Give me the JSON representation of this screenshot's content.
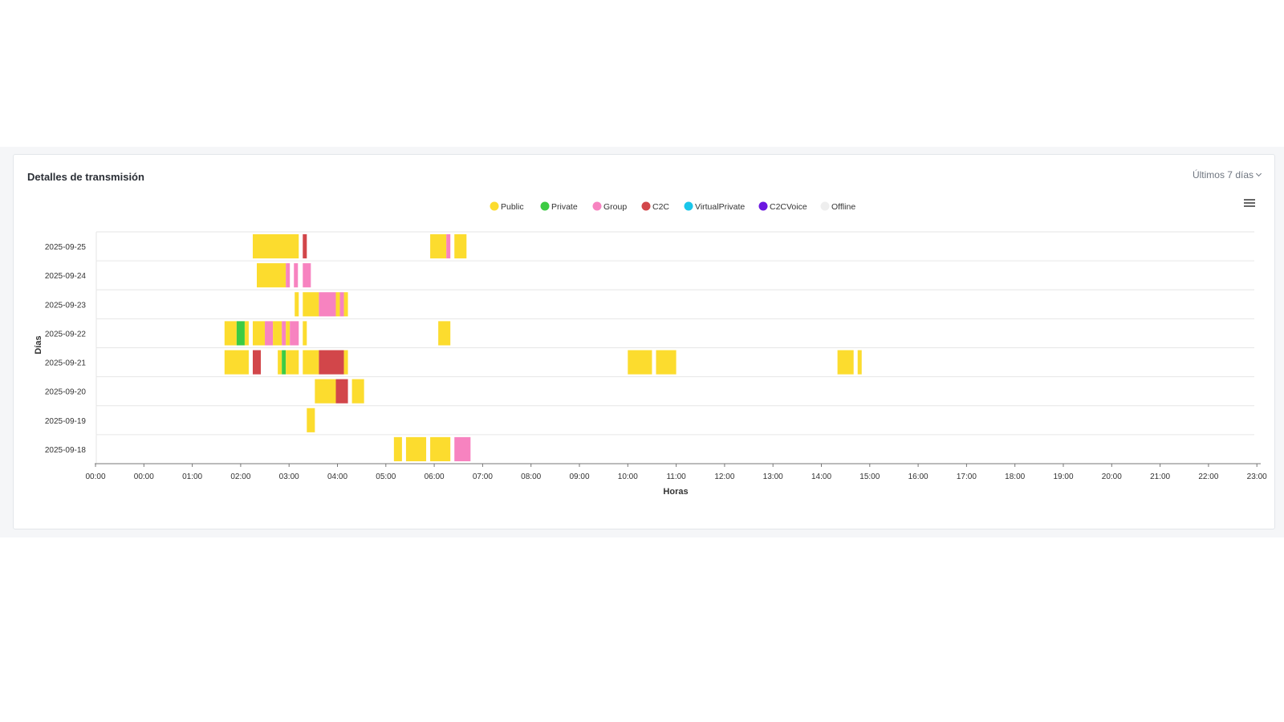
{
  "card": {
    "title": "Detalles de transmisión",
    "range_select": "Últimos 7 días",
    "menu_icon": "hamburger-menu-icon"
  },
  "chart_data": {
    "type": "timeline",
    "title": "",
    "xlabel": "Horas",
    "ylabel": "Días",
    "legend_position": "top-center",
    "x_tick_labels": [
      "00:00",
      "00:00",
      "01:00",
      "02:00",
      "03:00",
      "04:00",
      "05:00",
      "06:00",
      "07:00",
      "08:00",
      "09:00",
      "10:00",
      "11:00",
      "12:00",
      "13:00",
      "14:00",
      "15:00",
      "16:00",
      "17:00",
      "18:00",
      "19:00",
      "20:00",
      "21:00",
      "22:00",
      "23:00"
    ],
    "categories": [
      "2025-09-25",
      "2025-09-24",
      "2025-09-23",
      "2025-09-22",
      "2025-09-21",
      "2025-09-20",
      "2025-09-19",
      "2025-09-18"
    ],
    "legend": [
      {
        "name": "Public",
        "color": "#fcdc2e"
      },
      {
        "name": "Private",
        "color": "#3ccb43"
      },
      {
        "name": "Group",
        "color": "#f783c0"
      },
      {
        "name": "C2C",
        "color": "#d2464a"
      },
      {
        "name": "VirtualPrivate",
        "color": "#19c6ea"
      },
      {
        "name": "C2CVoice",
        "color": "#6b17e0"
      },
      {
        "name": "Offline",
        "color": "#eeeeee"
      }
    ],
    "segments": [
      {
        "day": "2025-09-25",
        "status": "Public",
        "start": "02:15",
        "end": "03:12"
      },
      {
        "day": "2025-09-25",
        "status": "C2C",
        "start": "03:17",
        "end": "03:22"
      },
      {
        "day": "2025-09-25",
        "status": "Public",
        "start": "05:55",
        "end": "06:15"
      },
      {
        "day": "2025-09-25",
        "status": "Group",
        "start": "06:15",
        "end": "06:20"
      },
      {
        "day": "2025-09-25",
        "status": "Public",
        "start": "06:25",
        "end": "06:40"
      },
      {
        "day": "2025-09-24",
        "status": "Public",
        "start": "02:20",
        "end": "02:56"
      },
      {
        "day": "2025-09-24",
        "status": "Group",
        "start": "02:56",
        "end": "03:01"
      },
      {
        "day": "2025-09-24",
        "status": "Group",
        "start": "03:06",
        "end": "03:11"
      },
      {
        "day": "2025-09-24",
        "status": "Group",
        "start": "03:17",
        "end": "03:27"
      },
      {
        "day": "2025-09-23",
        "status": "Public",
        "start": "03:07",
        "end": "03:12"
      },
      {
        "day": "2025-09-23",
        "status": "Public",
        "start": "03:17",
        "end": "03:37"
      },
      {
        "day": "2025-09-23",
        "status": "Group",
        "start": "03:37",
        "end": "03:58"
      },
      {
        "day": "2025-09-23",
        "status": "Public",
        "start": "03:58",
        "end": "04:03"
      },
      {
        "day": "2025-09-23",
        "status": "Group",
        "start": "04:03",
        "end": "04:08"
      },
      {
        "day": "2025-09-23",
        "status": "Public",
        "start": "04:08",
        "end": "04:13"
      },
      {
        "day": "2025-09-22",
        "status": "Public",
        "start": "01:40",
        "end": "01:55"
      },
      {
        "day": "2025-09-22",
        "status": "Private",
        "start": "01:55",
        "end": "02:05"
      },
      {
        "day": "2025-09-22",
        "status": "Public",
        "start": "02:05",
        "end": "02:10"
      },
      {
        "day": "2025-09-22",
        "status": "Public",
        "start": "02:15",
        "end": "02:30"
      },
      {
        "day": "2025-09-22",
        "status": "Group",
        "start": "02:30",
        "end": "02:40"
      },
      {
        "day": "2025-09-22",
        "status": "Public",
        "start": "02:40",
        "end": "02:51"
      },
      {
        "day": "2025-09-22",
        "status": "Group",
        "start": "02:51",
        "end": "02:56"
      },
      {
        "day": "2025-09-22",
        "status": "Public",
        "start": "02:56",
        "end": "03:01"
      },
      {
        "day": "2025-09-22",
        "status": "Group",
        "start": "03:01",
        "end": "03:12"
      },
      {
        "day": "2025-09-22",
        "status": "Public",
        "start": "03:17",
        "end": "03:22"
      },
      {
        "day": "2025-09-22",
        "status": "Public",
        "start": "06:05",
        "end": "06:20"
      },
      {
        "day": "2025-09-21",
        "status": "Public",
        "start": "01:40",
        "end": "02:10"
      },
      {
        "day": "2025-09-21",
        "status": "C2C",
        "start": "02:15",
        "end": "02:25"
      },
      {
        "day": "2025-09-21",
        "status": "Public",
        "start": "02:46",
        "end": "02:51"
      },
      {
        "day": "2025-09-21",
        "status": "Private",
        "start": "02:51",
        "end": "02:56"
      },
      {
        "day": "2025-09-21",
        "status": "Public",
        "start": "02:56",
        "end": "03:12"
      },
      {
        "day": "2025-09-21",
        "status": "Public",
        "start": "03:17",
        "end": "03:37"
      },
      {
        "day": "2025-09-21",
        "status": "C2C",
        "start": "03:37",
        "end": "04:08"
      },
      {
        "day": "2025-09-21",
        "status": "Public",
        "start": "04:08",
        "end": "04:13"
      },
      {
        "day": "2025-09-21",
        "status": "Public",
        "start": "10:00",
        "end": "10:30"
      },
      {
        "day": "2025-09-21",
        "status": "Public",
        "start": "10:35",
        "end": "11:00"
      },
      {
        "day": "2025-09-21",
        "status": "Public",
        "start": "14:20",
        "end": "14:40"
      },
      {
        "day": "2025-09-21",
        "status": "Public",
        "start": "14:45",
        "end": "14:50"
      },
      {
        "day": "2025-09-20",
        "status": "Public",
        "start": "03:32",
        "end": "03:58"
      },
      {
        "day": "2025-09-20",
        "status": "C2C",
        "start": "03:58",
        "end": "04:13"
      },
      {
        "day": "2025-09-20",
        "status": "Public",
        "start": "04:18",
        "end": "04:33"
      },
      {
        "day": "2025-09-19",
        "status": "Public",
        "start": "03:22",
        "end": "03:32"
      },
      {
        "day": "2025-09-18",
        "status": "Public",
        "start": "05:10",
        "end": "05:20"
      },
      {
        "day": "2025-09-18",
        "status": "Public",
        "start": "05:25",
        "end": "05:50"
      },
      {
        "day": "2025-09-18",
        "status": "Public",
        "start": "05:55",
        "end": "06:20"
      },
      {
        "day": "2025-09-18",
        "status": "Group",
        "start": "06:25",
        "end": "06:45"
      }
    ]
  }
}
